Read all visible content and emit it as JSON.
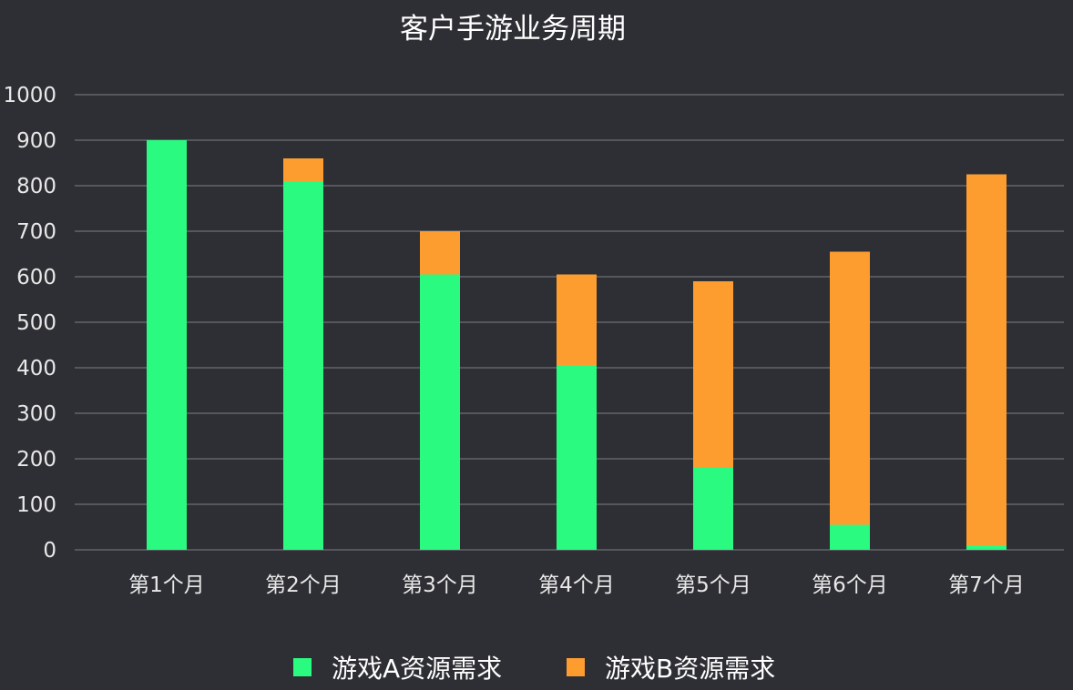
{
  "chart_data": {
    "type": "bar",
    "stacked": true,
    "title": "客户手游业务周期",
    "categories": [
      "第1个月",
      "第2个月",
      "第3个月",
      "第4个月",
      "第5个月",
      "第6个月",
      "第7个月"
    ],
    "series": [
      {
        "name": "游戏A资源需求",
        "color": "#2bfa80",
        "values": [
          900,
          810,
          605,
          405,
          180,
          55,
          10
        ]
      },
      {
        "name": "游戏B资源需求",
        "color": "#fd9c2f",
        "values": [
          0,
          50,
          95,
          200,
          410,
          600,
          815
        ]
      }
    ],
    "ylim": [
      0,
      1000
    ],
    "yticks": [
      "0",
      "100",
      "200",
      "300",
      "400",
      "500",
      "600",
      "700",
      "800",
      "900",
      "1000"
    ],
    "grid": true,
    "legend_position": "bottom",
    "colors": {
      "background": "#2e2f34",
      "gridline": "#55575d",
      "text": "#e8e8e8"
    }
  }
}
